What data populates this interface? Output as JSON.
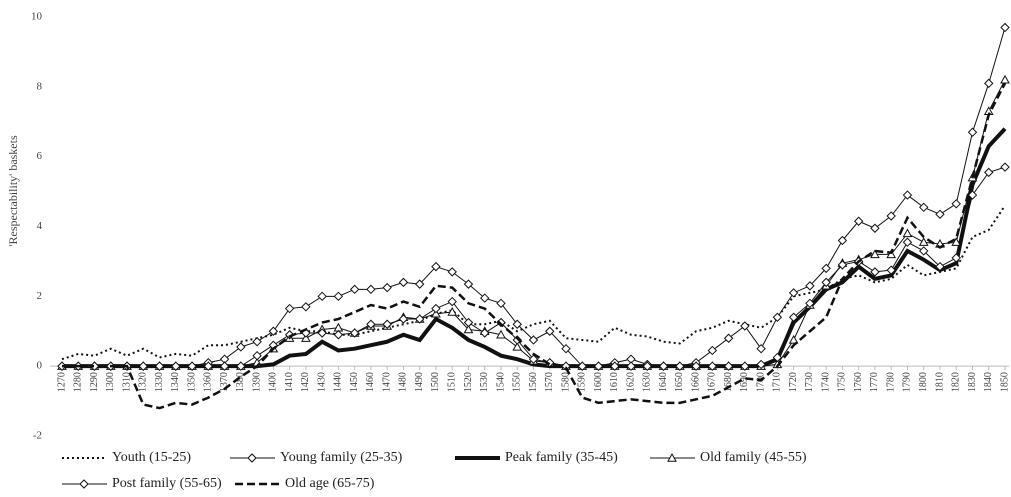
{
  "chart_data": {
    "type": "line",
    "y_label": "'Respectability' baskets",
    "ylim": [
      -2,
      10
    ],
    "yticks": [
      -2,
      0,
      2,
      4,
      6,
      8,
      10
    ],
    "grid": false,
    "legend": "bottom",
    "categories": [
      "1270",
      "1280",
      "1290",
      "1300",
      "1310",
      "1320",
      "1330",
      "1340",
      "1350",
      "1360",
      "1370",
      "1380",
      "1390",
      "1400",
      "1410",
      "1420",
      "1430",
      "1440",
      "1450",
      "1460",
      "1470",
      "1480",
      "1490",
      "1500",
      "1510",
      "1520",
      "1530",
      "1540",
      "1550",
      "1560",
      "1570",
      "1580",
      "1590",
      "1600",
      "1610",
      "1620",
      "1630",
      "1640",
      "1650",
      "1660",
      "1670",
      "1680",
      "1690",
      "1700",
      "1710",
      "1720",
      "1730",
      "1740",
      "1750",
      "1760",
      "1770",
      "1780",
      "1790",
      "1800",
      "1810",
      "1820",
      "1830",
      "1840",
      "1850"
    ],
    "series": [
      {
        "name": "Youth (15-25)",
        "color": "#111111",
        "dash": "dotted",
        "width": 2,
        "marker": "none",
        "values": [
          0.2,
          0.35,
          0.3,
          0.5,
          0.3,
          0.5,
          0.25,
          0.35,
          0.3,
          0.6,
          0.6,
          0.7,
          0.8,
          0.9,
          1.1,
          1.0,
          1.0,
          0.9,
          0.9,
          1.0,
          1.1,
          1.2,
          1.3,
          1.5,
          1.6,
          1.2,
          1.2,
          1.3,
          1.0,
          1.2,
          1.3,
          0.8,
          0.75,
          0.7,
          1.1,
          0.9,
          0.85,
          0.7,
          0.65,
          1.0,
          1.1,
          1.3,
          1.2,
          1.1,
          1.4,
          2.0,
          2.1,
          2.2,
          2.5,
          2.6,
          2.4,
          2.5,
          2.9,
          2.6,
          2.7,
          2.8,
          3.7,
          3.9,
          4.6
        ]
      },
      {
        "name": "Young family (25-35)",
        "color": "#111111",
        "dash": "solid",
        "width": 1,
        "marker": "diamond",
        "values": [
          0,
          0,
          0,
          0,
          0,
          0,
          0,
          0,
          0,
          0.1,
          0.2,
          0.55,
          0.7,
          1.0,
          1.65,
          1.7,
          2.0,
          2.0,
          2.2,
          2.2,
          2.25,
          2.4,
          2.35,
          2.85,
          2.7,
          2.35,
          1.95,
          1.8,
          1.2,
          0.75,
          1.0,
          0.5,
          0,
          0,
          0.1,
          0.2,
          0.05,
          0,
          0,
          0.1,
          0.45,
          0.8,
          1.15,
          0.5,
          1.4,
          2.1,
          2.3,
          2.8,
          3.6,
          4.15,
          3.95,
          4.3,
          4.9,
          4.55,
          4.35,
          4.65,
          6.7,
          8.1,
          9.7
        ]
      },
      {
        "name": "Peak family (35-45)",
        "color": "#111111",
        "dash": "solid",
        "width": 4,
        "marker": "none",
        "values": [
          0,
          0,
          0,
          0,
          0,
          0,
          0,
          0,
          0,
          0,
          0,
          0,
          0,
          0.05,
          0.3,
          0.35,
          0.7,
          0.45,
          0.5,
          0.6,
          0.7,
          0.9,
          0.75,
          1.35,
          1.1,
          0.75,
          0.55,
          0.3,
          0.2,
          0.05,
          0,
          0,
          0,
          0,
          0,
          0,
          0,
          0,
          0,
          0,
          0,
          0,
          0,
          0,
          0.2,
          1.25,
          1.7,
          2.2,
          2.4,
          2.85,
          2.5,
          2.6,
          3.3,
          3.05,
          2.75,
          2.95,
          5.2,
          6.3,
          6.8
        ]
      },
      {
        "name": "Old family (45-55)",
        "color": "#111111",
        "dash": "solid",
        "width": 1,
        "marker": "triangle",
        "values": [
          0,
          0,
          0,
          0,
          0,
          0,
          0,
          0,
          0,
          0,
          0,
          0,
          0.1,
          0.5,
          0.8,
          0.8,
          1.05,
          1.1,
          0.95,
          1.15,
          1.15,
          1.4,
          1.35,
          1.5,
          1.55,
          1.05,
          1.0,
          0.9,
          0.55,
          0.15,
          0.1,
          0,
          0,
          0,
          0,
          0,
          0,
          0,
          0,
          0,
          0,
          0,
          0,
          0,
          0.05,
          0.75,
          1.75,
          2.3,
          2.95,
          3.05,
          3.2,
          3.2,
          3.8,
          3.55,
          3.5,
          3.55,
          5.4,
          7.3,
          8.2
        ]
      },
      {
        "name": "Post family (55-65)",
        "color": "#111111",
        "dash": "solid",
        "width": 1,
        "marker": "diamond",
        "values": [
          0,
          0,
          0,
          0,
          0,
          0,
          0,
          0,
          0,
          0,
          0,
          0,
          0.3,
          0.6,
          0.9,
          0.95,
          0.95,
          0.9,
          0.95,
          1.2,
          1.2,
          1.35,
          1.35,
          1.65,
          1.85,
          1.25,
          0.95,
          1.25,
          0.75,
          0.2,
          0.1,
          0,
          0,
          0,
          0,
          0,
          0,
          0,
          0,
          0,
          0,
          0,
          0,
          0.05,
          0.25,
          1.4,
          1.8,
          2.4,
          2.9,
          3.0,
          2.7,
          2.75,
          3.55,
          3.3,
          2.85,
          3.1,
          4.9,
          5.55,
          5.7
        ]
      },
      {
        "name": "Old age (65-75)",
        "color": "#111111",
        "dash": "dashed",
        "width": 2.5,
        "marker": "none",
        "values": [
          0,
          0,
          0,
          0,
          0,
          -1.1,
          -1.2,
          -1.05,
          -1.1,
          -0.9,
          -0.65,
          -0.3,
          0,
          0.5,
          0.85,
          1.05,
          1.25,
          1.35,
          1.55,
          1.75,
          1.65,
          1.85,
          1.7,
          2.3,
          2.25,
          1.8,
          1.65,
          1.2,
          0.8,
          0.35,
          0.05,
          -0.05,
          -0.9,
          -1.05,
          -1.0,
          -0.95,
          -1.0,
          -1.05,
          -1.05,
          -0.95,
          -0.85,
          -0.6,
          -0.35,
          -0.4,
          0,
          0.6,
          1.0,
          1.4,
          2.5,
          3.0,
          3.3,
          3.25,
          4.25,
          3.7,
          3.4,
          3.65,
          5.4,
          7.2,
          8.1
        ]
      }
    ]
  }
}
